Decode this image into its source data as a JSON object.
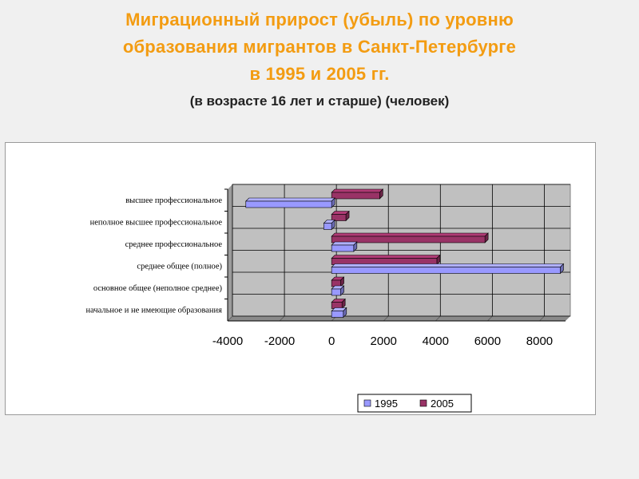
{
  "header": {
    "title_lines": [
      "Миграционный прирост (убыль) по уровню",
      "образования мигрантов в Санкт-Петербурге",
      "в 1995 и 2005 гг."
    ],
    "subtitle": "(в возрасте 16 лет и старше) (человек)"
  },
  "colors": {
    "title": "#f39c12",
    "series_1995": "#9999ff",
    "series_2005": "#993366",
    "plot_area": "#c0c0c0"
  },
  "chart_data": {
    "type": "bar",
    "orientation": "horizontal",
    "style": "3d-clustered",
    "categories": [
      "высшее профессиональное",
      "неполное высшее профессиональное",
      "среднее профессиональное",
      "среднее общее (полное)",
      "основное общее (неполное среднее)",
      "начальное и не имеющие образования"
    ],
    "series": [
      {
        "name": "1995",
        "values": [
          -3300,
          -300,
          850,
          8800,
          350,
          450
        ]
      },
      {
        "name": "2005",
        "values": [
          1850,
          550,
          5900,
          4050,
          350,
          400
        ]
      }
    ],
    "x_ticks": [
      "-4000",
      "-2000",
      "0",
      "2000",
      "4000",
      "6000",
      "8000"
    ],
    "xlim": [
      -4000,
      9000
    ],
    "grid": true,
    "legend_position": "bottom-right"
  }
}
